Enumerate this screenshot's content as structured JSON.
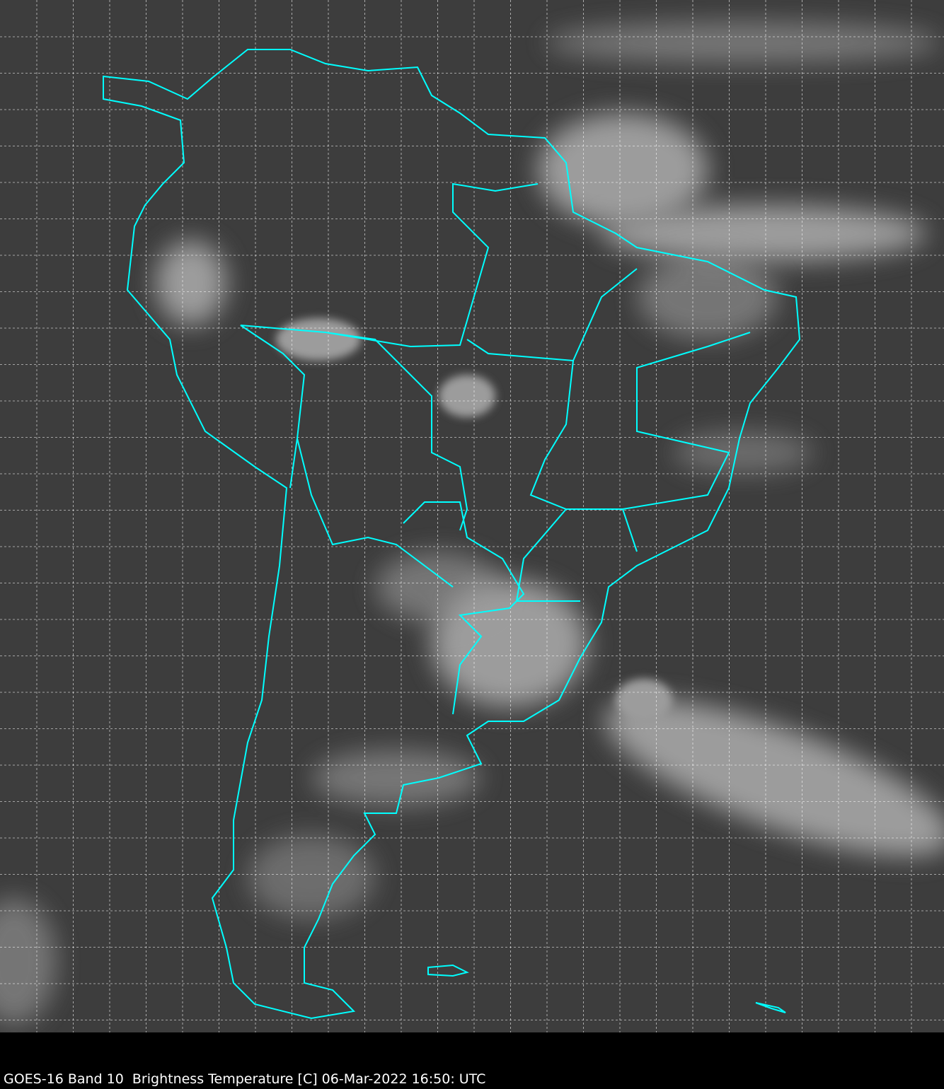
{
  "caption": "GOES-16 Band 10  Brightness Temperature [C] 06-Mar-2022 16:50: UTC",
  "map": {
    "product": "satellite infrared imagery, grayscale",
    "region": "South America",
    "overlay_color": "#00ffff",
    "grid": "dashed white latitude/longitude grid",
    "background_color": "#3d3d3d"
  }
}
